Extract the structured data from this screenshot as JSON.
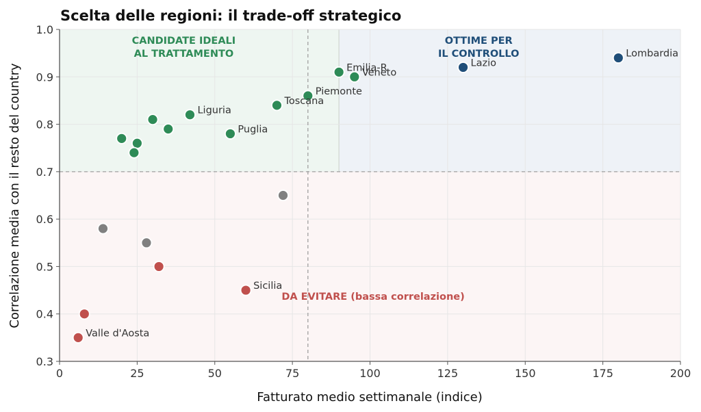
{
  "chart_data": {
    "type": "scatter",
    "title": "Scelta delle regioni: il trade-off strategico",
    "xlabel": "Fatturato medio settimanale (indice)",
    "ylabel": "Correlazione media con il resto del country",
    "xlim": [
      0,
      200
    ],
    "ylim": [
      0.3,
      1.0
    ],
    "xticks": [
      0,
      25,
      50,
      75,
      100,
      125,
      150,
      175,
      200
    ],
    "yticks": [
      0.3,
      0.4,
      0.5,
      0.6,
      0.7,
      0.8,
      0.9,
      1.0
    ],
    "grid": true,
    "reference_lines": {
      "x": 80,
      "y": 0.7
    },
    "zones": [
      {
        "lines": [
          "CANDIDATE IDEALI",
          "AL TRATTAMENTO"
        ],
        "x_range": [
          0,
          90
        ],
        "y_range": [
          0.7,
          1.0
        ],
        "fill": "#eef6f1",
        "color": "#2e8b57",
        "label_x": 40,
        "label_y": 0.97
      },
      {
        "lines": [
          "OTTIME PER",
          "IL CONTROLLO"
        ],
        "x_range": [
          90,
          200
        ],
        "y_range": [
          0.7,
          1.0
        ],
        "fill": "#eef2f7",
        "color": "#1f4e79",
        "label_x": 135,
        "label_y": 0.97
      },
      {
        "lines": [
          "DA EVITARE (bassa correlazione)"
        ],
        "x_range": [
          0,
          200
        ],
        "y_range": [
          0.3,
          0.7
        ],
        "fill": "#fcf5f5",
        "color": "#c0504d",
        "label_x": 101,
        "label_y": 0.43
      }
    ],
    "points": [
      {
        "x": 180,
        "y": 0.94,
        "group": "control",
        "label": "Lombardia"
      },
      {
        "x": 130,
        "y": 0.92,
        "group": "control",
        "label": "Lazio"
      },
      {
        "x": 90,
        "y": 0.91,
        "group": "treatment",
        "label": "Emilia-R"
      },
      {
        "x": 95,
        "y": 0.9,
        "group": "treatment",
        "label": "Veneto"
      },
      {
        "x": 80,
        "y": 0.86,
        "group": "treatment",
        "label": "Piemonte"
      },
      {
        "x": 70,
        "y": 0.84,
        "group": "treatment",
        "label": "Toscana"
      },
      {
        "x": 42,
        "y": 0.82,
        "group": "treatment",
        "label": "Liguria"
      },
      {
        "x": 55,
        "y": 0.78,
        "group": "treatment",
        "label": "Puglia"
      },
      {
        "x": 30,
        "y": 0.81,
        "group": "treatment",
        "label": ""
      },
      {
        "x": 35,
        "y": 0.79,
        "group": "treatment",
        "label": ""
      },
      {
        "x": 20,
        "y": 0.77,
        "group": "treatment",
        "label": ""
      },
      {
        "x": 25,
        "y": 0.76,
        "group": "treatment",
        "label": ""
      },
      {
        "x": 24,
        "y": 0.74,
        "group": "treatment",
        "label": ""
      },
      {
        "x": 72,
        "y": 0.65,
        "group": "neutral",
        "label": ""
      },
      {
        "x": 14,
        "y": 0.58,
        "group": "neutral",
        "label": ""
      },
      {
        "x": 28,
        "y": 0.55,
        "group": "neutral",
        "label": ""
      },
      {
        "x": 32,
        "y": 0.5,
        "group": "avoid",
        "label": ""
      },
      {
        "x": 60,
        "y": 0.45,
        "group": "avoid",
        "label": "Sicilia"
      },
      {
        "x": 8,
        "y": 0.4,
        "group": "avoid",
        "label": ""
      },
      {
        "x": 6,
        "y": 0.35,
        "group": "avoid",
        "label": "Valle d'Aosta"
      }
    ],
    "group_colors": {
      "control": "#1f4e79",
      "treatment": "#2e8b57",
      "neutral": "#808080",
      "avoid": "#c0504d"
    }
  }
}
